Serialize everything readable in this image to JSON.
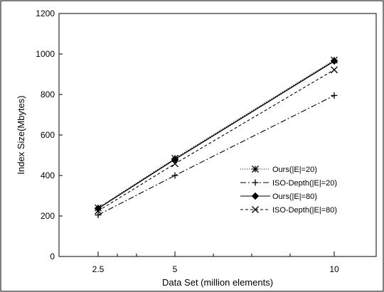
{
  "chart_data": {
    "type": "line",
    "xlabel": "Data Set (million elements)",
    "ylabel": "Index Size(Mbytes)",
    "x_ticks": [
      "2.5",
      "5",
      "10"
    ],
    "y_ticks": [
      "0",
      "200",
      "400",
      "600",
      "800",
      "1000",
      "1200"
    ],
    "ylim": [
      0,
      1200
    ],
    "grid": false,
    "legend_position": "bottom-right",
    "x": [
      2.5,
      5,
      10
    ],
    "series": [
      {
        "name": "Ours(|E|=20)",
        "values": [
          240,
          485,
          970
        ],
        "marker": "asterisk",
        "dash": "1,2"
      },
      {
        "name": "ISO-Depth(|E|=20)",
        "values": [
          205,
          400,
          795
        ],
        "marker": "plus",
        "dash": "8,3,2,3"
      },
      {
        "name": "Ours(|E|=80)",
        "values": [
          237,
          480,
          965
        ],
        "marker": "diamond",
        "dash": ""
      },
      {
        "name": "ISO-Depth(|E|=80)",
        "values": [
          225,
          458,
          922
        ],
        "marker": "cross",
        "dash": "4,3"
      }
    ]
  }
}
